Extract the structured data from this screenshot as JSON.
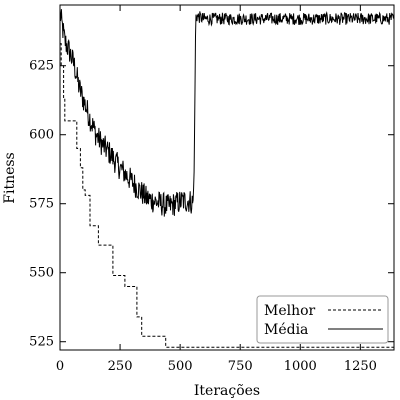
{
  "chart_data": {
    "type": "line",
    "xlabel": "Iterações",
    "ylabel": "Fitness",
    "xlim": [
      0,
      1390
    ],
    "ylim": [
      522,
      647
    ],
    "xticks": [
      0,
      250,
      500,
      750,
      1000,
      1250
    ],
    "yticks": [
      525,
      550,
      575,
      600,
      625
    ],
    "legend": {
      "placement": "bottom-right"
    },
    "grid": false,
    "series": [
      {
        "name": "Melhor",
        "style": "dashed",
        "color": "#000000",
        "x": [
          0,
          5,
          15,
          20,
          65,
          70,
          85,
          95,
          105,
          125,
          160,
          220,
          270,
          320,
          340,
          420,
          440,
          560,
          1390
        ],
        "y": [
          633,
          625,
          613,
          605,
          605,
          595,
          588,
          580,
          578,
          567,
          560,
          549,
          545,
          534,
          527,
          527,
          523,
          523,
          523
        ]
      },
      {
        "name": "Média",
        "style": "solid",
        "color": "#000000",
        "x": [
          0,
          20,
          40,
          60,
          80,
          100,
          120,
          150,
          180,
          210,
          240,
          270,
          300,
          330,
          360,
          390,
          420,
          450,
          480,
          510,
          540,
          555,
          560,
          565,
          600,
          700,
          800,
          900,
          1000,
          1100,
          1200,
          1300,
          1390
        ],
        "y": [
          644,
          634,
          630,
          625,
          617,
          612,
          607,
          600,
          596,
          593,
          589,
          586,
          583,
          580,
          577,
          576,
          575,
          574,
          575,
          576,
          576,
          575,
          600,
          643,
          642,
          642,
          642,
          642,
          642,
          642,
          642,
          642,
          642
        ],
        "noise": true
      }
    ]
  }
}
